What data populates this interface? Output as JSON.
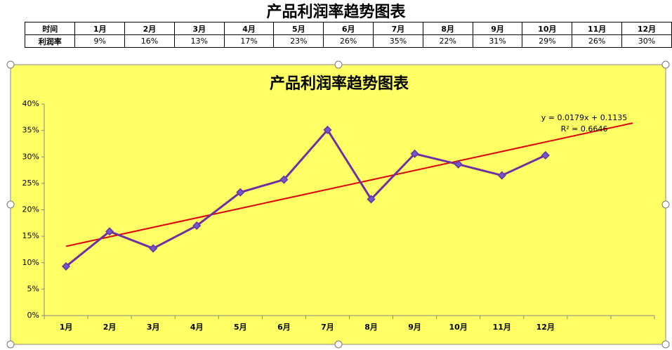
{
  "header": {
    "title": "产品利润率趋势图表"
  },
  "table": {
    "rows": [
      [
        "时间",
        "1月",
        "2月",
        "3月",
        "4月",
        "5月",
        "6月",
        "7月",
        "8月",
        "9月",
        "10月",
        "11月",
        "12月"
      ],
      [
        "利润率",
        "9%",
        "16%",
        "13%",
        "17%",
        "23%",
        "26%",
        "35%",
        "22%",
        "31%",
        "29%",
        "26%",
        "30%"
      ]
    ]
  },
  "chart_data": {
    "type": "line",
    "title": "产品利润率趋势图表",
    "categories": [
      "1月",
      "2月",
      "3月",
      "4月",
      "5月",
      "6月",
      "7月",
      "8月",
      "9月",
      "10月",
      "11月",
      "12月",
      null,
      null
    ],
    "series": [
      {
        "color": "#7030a0",
        "marker_color": "#6a5acd",
        "values": [
          9.3,
          15.9,
          12.7,
          17.0,
          23.3,
          25.7,
          35.1,
          22.0,
          30.6,
          28.6,
          26.5,
          30.3,
          null,
          null
        ]
      }
    ],
    "trendline": {
      "color": "#e00000",
      "values": [
        13.1,
        36.4
      ]
    },
    "annotations": [
      "y = 0.0179x + 0.1135",
      "R² = 0.6646"
    ],
    "ylim": [
      0,
      40
    ],
    "yticks": [
      {
        "value": 0,
        "label": "0%"
      },
      {
        "value": 5,
        "label": "5%"
      },
      {
        "value": 10,
        "label": "10%"
      },
      {
        "value": 15,
        "label": "15%"
      },
      {
        "value": 20,
        "label": "20%"
      },
      {
        "value": 25,
        "label": "25%"
      },
      {
        "value": 30,
        "label": "30%"
      },
      {
        "value": 35,
        "label": "35%"
      },
      {
        "value": 40,
        "label": "40%"
      }
    ],
    "background": "#ffff66"
  }
}
